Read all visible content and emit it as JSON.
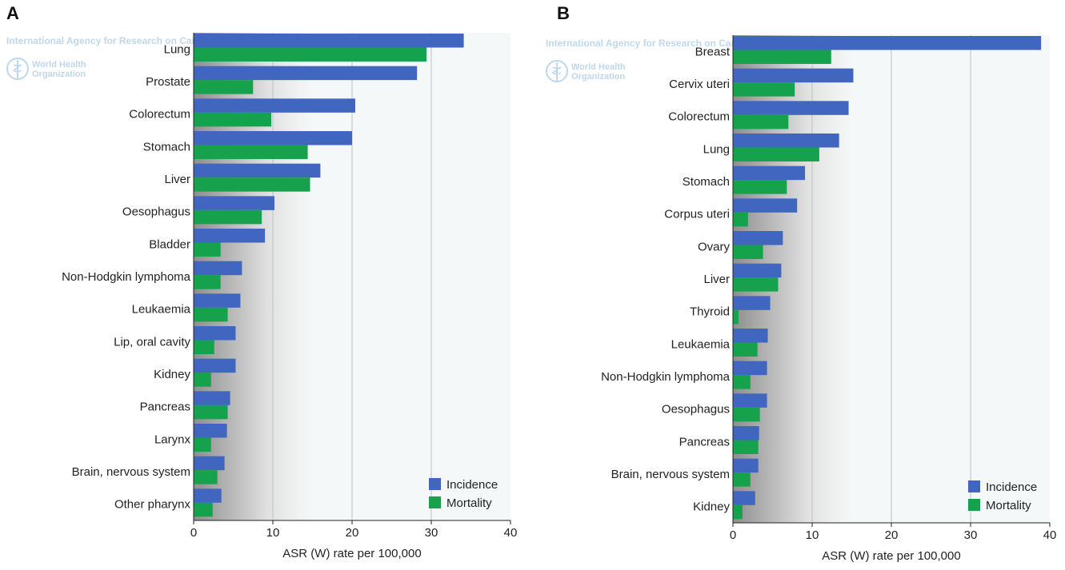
{
  "colors": {
    "incidence": "#4066bf",
    "mortality": "#16a24c",
    "plot_bg": "#f5f8f8",
    "grid": "#bcc1c4"
  },
  "watermark": {
    "line1": "International Agency for Research on Cancer",
    "line2a": "World Health",
    "line2b": "Organization",
    "emblem": "who-emblem-icon"
  },
  "panels": [
    {
      "letter": "A"
    },
    {
      "letter": "B"
    }
  ],
  "chart_data": [
    {
      "type": "bar",
      "orientation": "horizontal",
      "categories": [
        "Lung",
        "Prostate",
        "Colorectum",
        "Stomach",
        "Liver",
        "Oesophagus",
        "Bladder",
        "Non-Hodgkin lymphoma",
        "Leukaemia",
        "Lip, oral cavity",
        "Kidney",
        "Pancreas",
        "Larynx",
        "Brain, nervous system",
        "Other pharynx"
      ],
      "series": [
        {
          "name": "Incidence",
          "values": [
            34.1,
            28.2,
            20.4,
            20.0,
            16.0,
            10.2,
            9.0,
            6.1,
            5.9,
            5.3,
            5.3,
            4.6,
            4.2,
            3.9,
            3.5
          ]
        },
        {
          "name": "Mortality",
          "values": [
            29.4,
            7.5,
            9.8,
            14.4,
            14.7,
            8.6,
            3.4,
            3.4,
            4.3,
            2.6,
            2.2,
            4.3,
            2.2,
            3.0,
            2.4
          ]
        }
      ],
      "xlabel": "ASR (W) rate per 100,000",
      "ylabel": "",
      "xlim": [
        0,
        40
      ],
      "xticks": [
        "0",
        "10",
        "20",
        "30",
        "40"
      ],
      "grid": true,
      "legend": "bottom-right"
    },
    {
      "type": "bar",
      "orientation": "horizontal",
      "categories": [
        "Breast",
        "Cervix uteri",
        "Colorectum",
        "Lung",
        "Stomach",
        "Corpus uteri",
        "Ovary",
        "Liver",
        "Thyroid",
        "Leukaemia",
        "Non-Hodgkin lymphoma",
        "Oesophagus",
        "Pancreas",
        "Brain, nervous system",
        "Kidney"
      ],
      "series": [
        {
          "name": "Incidence",
          "values": [
            38.9,
            15.2,
            14.6,
            13.4,
            9.1,
            8.1,
            6.3,
            6.1,
            4.7,
            4.4,
            4.3,
            4.3,
            3.3,
            3.2,
            2.8
          ]
        },
        {
          "name": "Mortality",
          "values": [
            12.4,
            7.8,
            7.0,
            10.9,
            6.8,
            1.9,
            3.8,
            5.7,
            0.7,
            3.1,
            2.2,
            3.4,
            3.2,
            2.2,
            1.2
          ]
        }
      ],
      "xlabel": "ASR (W) rate per 100,000",
      "ylabel": "",
      "xlim": [
        0,
        40
      ],
      "xticks": [
        "0",
        "10",
        "20",
        "30",
        "40"
      ],
      "grid": true,
      "legend": "bottom-right"
    }
  ]
}
